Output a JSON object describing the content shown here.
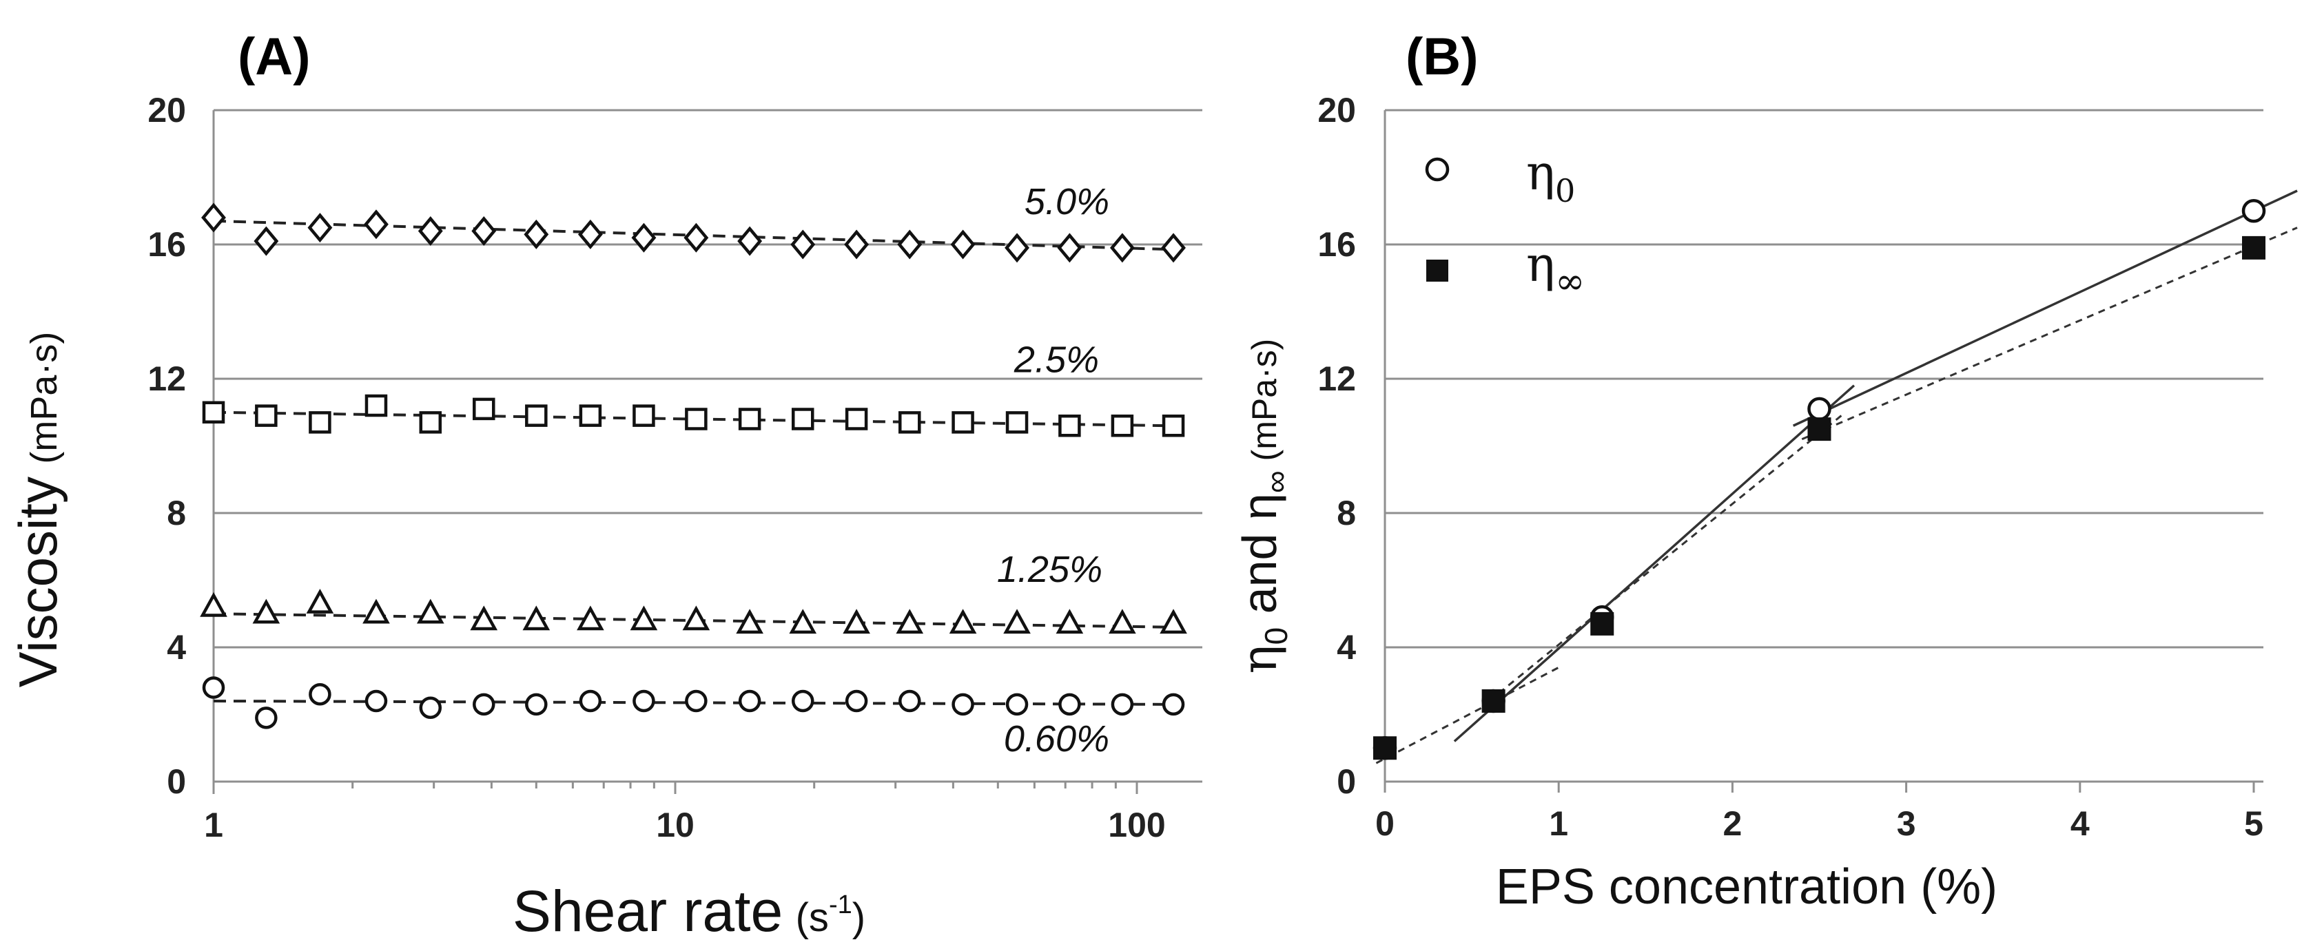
{
  "chart_data": [
    {
      "panel": "(A)",
      "type": "scatter",
      "xscale": "log",
      "xlabel": "Shear rate",
      "xlabel_unit": "(s",
      "xlabel_sup": "-1",
      "xlabel_close": ")",
      "ylabel": "Viscosity",
      "ylabel_unit": "(mPa·s)",
      "xlim": [
        1,
        120
      ],
      "ylim": [
        0,
        20
      ],
      "x_ticks": [
        1,
        10,
        100
      ],
      "x_tick_labels": [
        "1",
        "10",
        "100"
      ],
      "y_ticks": [
        0,
        4,
        8,
        12,
        16,
        20
      ],
      "y_tick_labels": [
        "0",
        "4",
        "8",
        "12",
        "16",
        "20"
      ],
      "grid": true,
      "x": [
        1.0,
        1.3,
        1.7,
        2.25,
        2.95,
        3.85,
        5.0,
        6.55,
        8.55,
        11.1,
        14.5,
        18.9,
        24.7,
        32.2,
        42.0,
        55.0,
        71.5,
        93.0,
        120.0
      ],
      "series": [
        {
          "name": "5.0%",
          "marker": "diamond",
          "values": [
            16.8,
            16.1,
            16.5,
            16.6,
            16.4,
            16.4,
            16.3,
            16.3,
            16.2,
            16.2,
            16.1,
            16.0,
            16.0,
            16.0,
            16.0,
            15.9,
            15.9,
            15.9,
            15.9
          ],
          "fit": [
            16.7,
            15.85
          ]
        },
        {
          "name": "2.5%",
          "marker": "square",
          "values": [
            11.0,
            10.9,
            10.7,
            11.2,
            10.7,
            11.1,
            10.9,
            10.9,
            10.9,
            10.8,
            10.8,
            10.8,
            10.8,
            10.7,
            10.7,
            10.7,
            10.6,
            10.6,
            10.6
          ],
          "fit": [
            11.0,
            10.6
          ]
        },
        {
          "name": "1.25%",
          "marker": "triangle",
          "values": [
            5.2,
            5.0,
            5.3,
            5.0,
            5.0,
            4.8,
            4.8,
            4.8,
            4.8,
            4.8,
            4.7,
            4.7,
            4.7,
            4.7,
            4.7,
            4.7,
            4.7,
            4.7,
            4.7
          ],
          "fit": [
            5.0,
            4.6
          ]
        },
        {
          "name": "0.60%",
          "marker": "circle",
          "values": [
            2.8,
            1.9,
            2.6,
            2.4,
            2.2,
            2.3,
            2.3,
            2.4,
            2.4,
            2.4,
            2.4,
            2.4,
            2.4,
            2.4,
            2.3,
            2.3,
            2.3,
            2.3,
            2.3
          ],
          "fit": [
            2.4,
            2.3
          ]
        }
      ]
    },
    {
      "panel": "(B)",
      "type": "scatter",
      "xlabel": "EPS concentration (%)",
      "ylabel_parts": [
        "η",
        "0",
        " and η",
        "∞",
        " (mPa·s)"
      ],
      "xlim": [
        0,
        5
      ],
      "ylim": [
        0,
        20
      ],
      "x_ticks": [
        0,
        1,
        2,
        3,
        4,
        5
      ],
      "x_tick_labels": [
        "0",
        "1",
        "2",
        "3",
        "4",
        "5"
      ],
      "y_ticks": [
        0,
        4,
        8,
        12,
        16,
        20
      ],
      "y_tick_labels": [
        "0",
        "4",
        "8",
        "12",
        "16",
        "20"
      ],
      "grid": true,
      "x": [
        0,
        0.625,
        1.25,
        2.5,
        5.0
      ],
      "series": [
        {
          "name": "η0",
          "symbol": "η",
          "subscript": "0",
          "marker": "circle-open",
          "values": [
            1.0,
            2.4,
            4.9,
            11.1,
            17.0
          ]
        },
        {
          "name": "η∞",
          "symbol": "η",
          "subscript": "∞",
          "marker": "square-filled",
          "values": [
            1.0,
            2.4,
            4.7,
            10.5,
            15.9
          ]
        }
      ],
      "trendlines": [
        {
          "style": "solid",
          "from": [
            0.4,
            1.2
          ],
          "to": [
            2.7,
            11.8
          ]
        },
        {
          "style": "solid",
          "from": [
            2.35,
            10.6
          ],
          "to": [
            5.25,
            17.6
          ]
        },
        {
          "style": "dashed",
          "from": [
            -0.05,
            0.55
          ],
          "to": [
            1.0,
            3.4
          ]
        },
        {
          "style": "dashed",
          "from": [
            0.6,
            2.4
          ],
          "to": [
            2.65,
            11.0
          ]
        },
        {
          "style": "dashed",
          "from": [
            2.4,
            10.2
          ],
          "to": [
            5.25,
            16.5
          ]
        }
      ]
    }
  ]
}
